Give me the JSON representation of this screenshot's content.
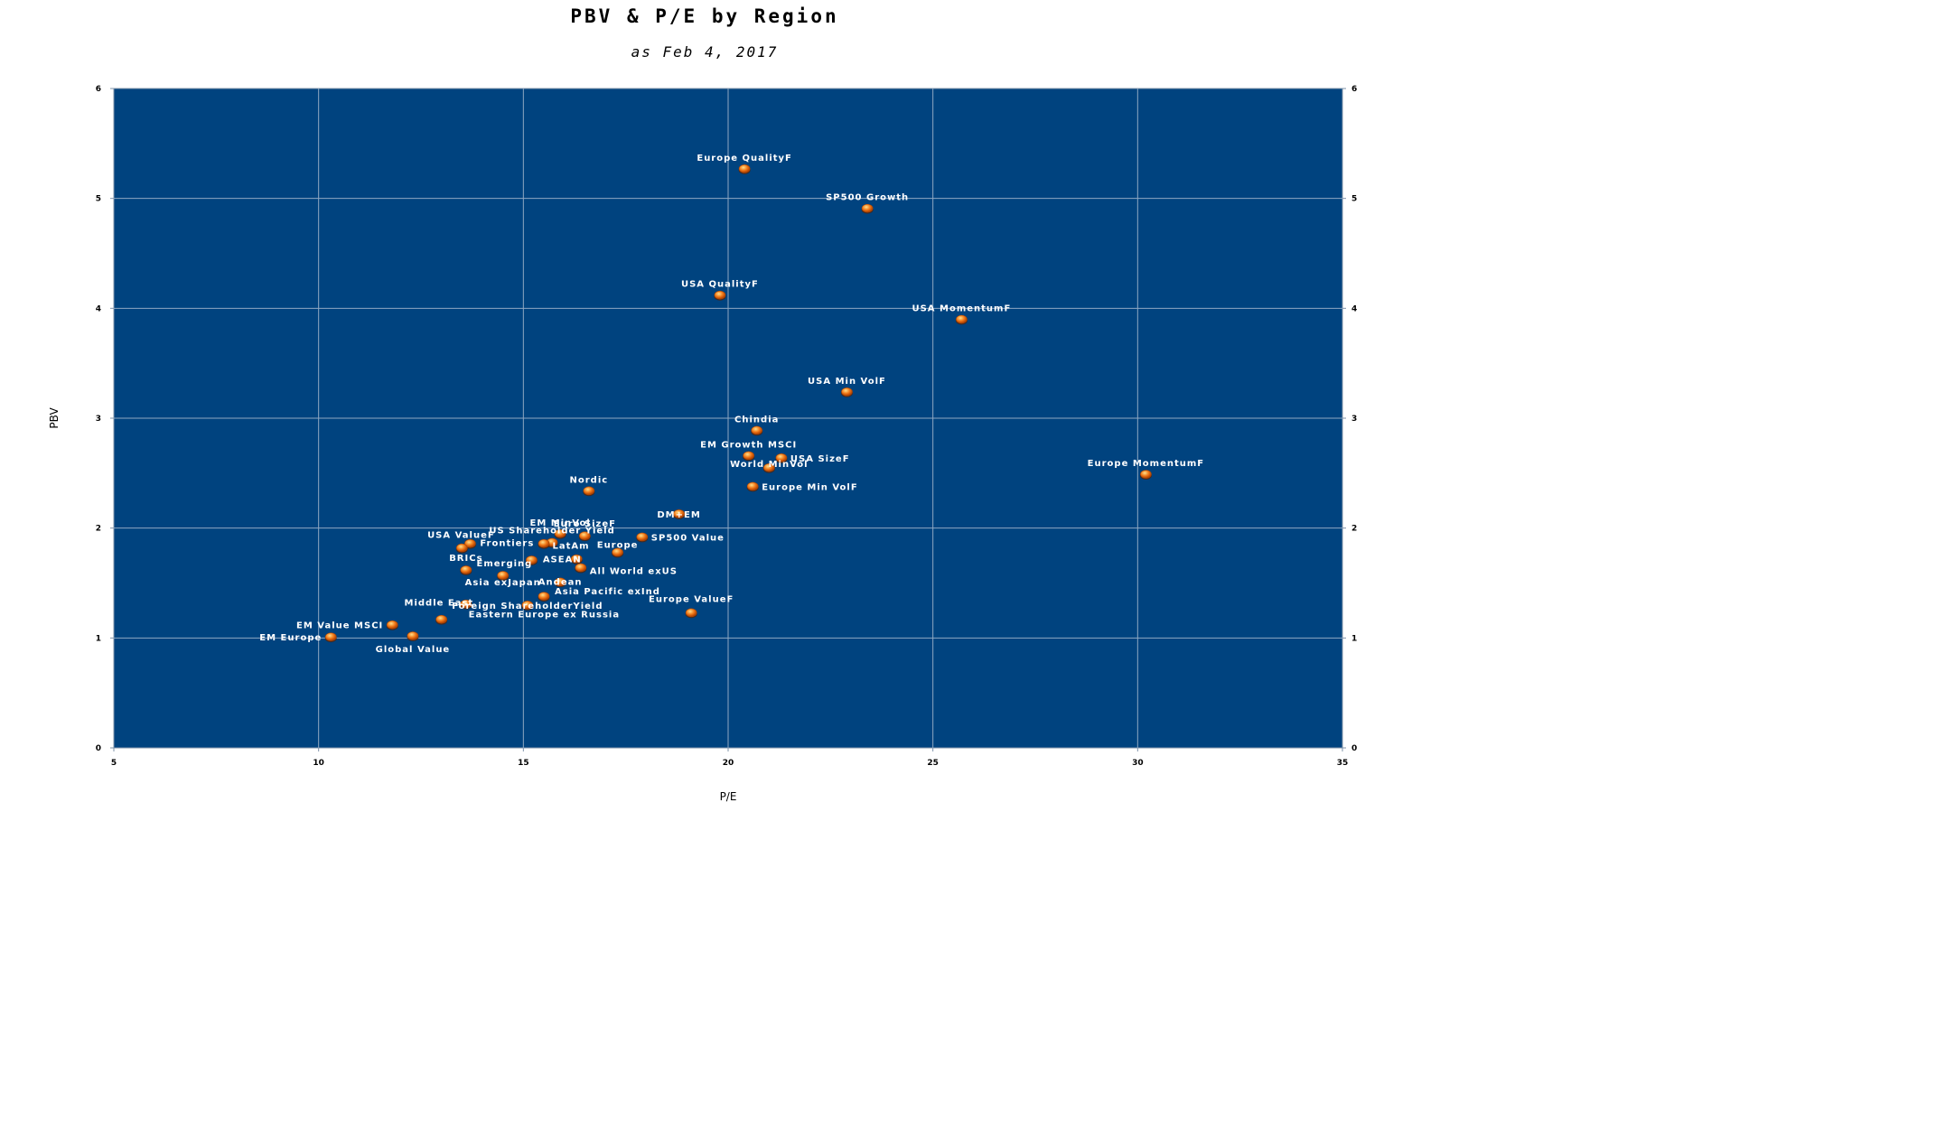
{
  "chart_data": {
    "type": "scatter",
    "title": "PBV & P/E by Region",
    "subtitle": "as Feb 4, 2017",
    "xlabel": "P/E",
    "ylabel": "PBV",
    "xlim": [
      5,
      35
    ],
    "ylim": [
      0,
      6
    ],
    "xticks": [
      5,
      10,
      15,
      20,
      25,
      30,
      35
    ],
    "yticks": [
      0,
      1,
      2,
      3,
      4,
      5,
      6
    ],
    "grid": true,
    "secondary_y_axis": true,
    "plot_background": "#00437f",
    "grid_color": "#8fa7c2",
    "marker_color": "#f07818",
    "label_color": "#ffffff",
    "points": [
      {
        "label": "Europe QualityF",
        "x": 20.4,
        "y": 5.27
      },
      {
        "label": "SP500 Growth",
        "x": 23.4,
        "y": 4.91
      },
      {
        "label": "USA QualityF",
        "x": 19.8,
        "y": 4.12
      },
      {
        "label": "USA MomentumF",
        "x": 25.7,
        "y": 3.9
      },
      {
        "label": "USA Min VolF",
        "x": 22.9,
        "y": 3.24
      },
      {
        "label": "Chindia",
        "x": 20.7,
        "y": 2.89
      },
      {
        "label": "EM Growth MSCI",
        "x": 20.5,
        "y": 2.66
      },
      {
        "label": "World MinVol",
        "x": 21.0,
        "y": 2.55
      },
      {
        "label": "USA SizeF",
        "x": 21.3,
        "y": 2.64
      },
      {
        "label": "Europe MomentumF",
        "x": 30.2,
        "y": 2.49
      },
      {
        "label": "Nordic",
        "x": 16.6,
        "y": 2.34
      },
      {
        "label": "Europe Min VolF",
        "x": 20.6,
        "y": 2.38
      },
      {
        "label": "DM+EM",
        "x": 18.8,
        "y": 2.13
      },
      {
        "label": "EM MinVol",
        "x": 15.9,
        "y": 1.95
      },
      {
        "label": "Euro SizeF",
        "x": 16.5,
        "y": 1.93
      },
      {
        "label": "US Shareholder Yield",
        "x": 15.7,
        "y": 1.87
      },
      {
        "label": "SP500 Value",
        "x": 17.9,
        "y": 1.92
      },
      {
        "label": "USA ValueF",
        "x": 13.7,
        "y": 1.86
      },
      {
        "label": "Frontiers",
        "x": 13.5,
        "y": 1.82
      },
      {
        "label": "LatAm",
        "x": 15.5,
        "y": 1.86
      },
      {
        "label": "Europe",
        "x": 17.3,
        "y": 1.78
      },
      {
        "label": "BRICs",
        "x": 13.6,
        "y": 1.62
      },
      {
        "label": "Emerging",
        "x": 15.2,
        "y": 1.71
      },
      {
        "label": "ASEAN",
        "x": 16.3,
        "y": 1.72
      },
      {
        "label": "All World exUS",
        "x": 16.4,
        "y": 1.64
      },
      {
        "label": "Asia exJapan",
        "x": 14.5,
        "y": 1.57
      },
      {
        "label": "Andean",
        "x": 15.9,
        "y": 1.51
      },
      {
        "label": "Asia Pacific exInd",
        "x": 15.5,
        "y": 1.38
      },
      {
        "label": "Europe ValueF",
        "x": 19.1,
        "y": 1.23
      },
      {
        "label": "Middle East",
        "x": 13.6,
        "y": 1.31
      },
      {
        "label": "Foreign ShareholderYield",
        "x": 15.1,
        "y": 1.3
      },
      {
        "label": "Eastern Europe ex Russia",
        "x": 13.0,
        "y": 1.17
      },
      {
        "label": "EM Value MSCI",
        "x": 11.8,
        "y": 1.12
      },
      {
        "label": "Global Value",
        "x": 12.3,
        "y": 1.02
      },
      {
        "label": "EM Europe",
        "x": 10.3,
        "y": 1.01
      }
    ]
  }
}
